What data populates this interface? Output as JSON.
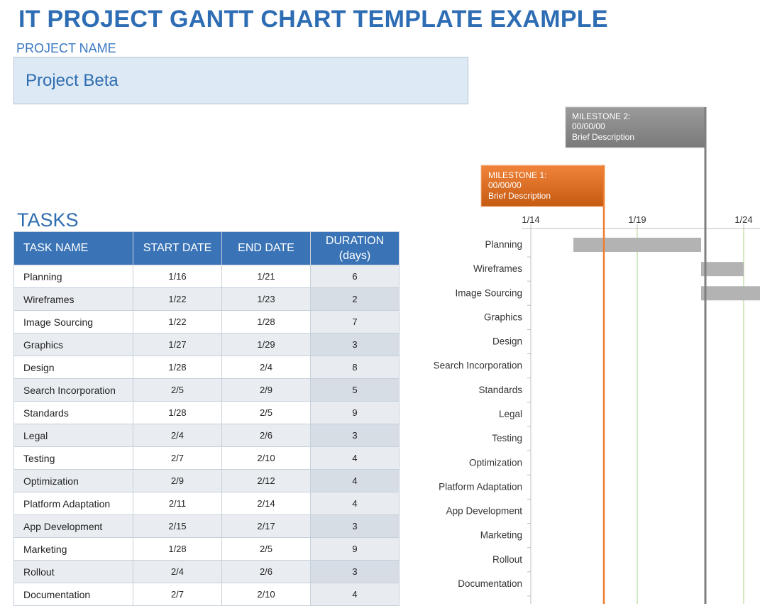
{
  "header": {
    "title": "IT PROJECT GANTT CHART TEMPLATE EXAMPLE",
    "project_label": "PROJECT NAME",
    "project_name": "Project Beta",
    "tasks_label": "TASKS"
  },
  "table": {
    "columns": [
      "TASK NAME",
      "START DATE",
      "END DATE",
      "DURATION (days)"
    ],
    "rows": [
      {
        "task": "Planning",
        "start": "1/16",
        "end": "1/21",
        "duration": 6
      },
      {
        "task": "Wireframes",
        "start": "1/22",
        "end": "1/23",
        "duration": 2
      },
      {
        "task": "Image Sourcing",
        "start": "1/22",
        "end": "1/28",
        "duration": 7
      },
      {
        "task": "Graphics",
        "start": "1/27",
        "end": "1/29",
        "duration": 3
      },
      {
        "task": "Design",
        "start": "1/28",
        "end": "2/4",
        "duration": 8
      },
      {
        "task": "Search Incorporation",
        "start": "2/5",
        "end": "2/9",
        "duration": 5
      },
      {
        "task": "Standards",
        "start": "1/28",
        "end": "2/5",
        "duration": 9
      },
      {
        "task": "Legal",
        "start": "2/4",
        "end": "2/6",
        "duration": 3
      },
      {
        "task": "Testing",
        "start": "2/7",
        "end": "2/10",
        "duration": 4
      },
      {
        "task": "Optimization",
        "start": "2/9",
        "end": "2/12",
        "duration": 4
      },
      {
        "task": "Platform Adaptation",
        "start": "2/11",
        "end": "2/14",
        "duration": 4
      },
      {
        "task": "App Development",
        "start": "2/15",
        "end": "2/17",
        "duration": 3
      },
      {
        "task": "Marketing",
        "start": "1/28",
        "end": "2/5",
        "duration": 9
      },
      {
        "task": "Rollout",
        "start": "2/4",
        "end": "2/6",
        "duration": 3
      },
      {
        "task": "Documentation",
        "start": "2/7",
        "end": "2/10",
        "duration": 4
      }
    ]
  },
  "gantt": {
    "xlim": [
      "1/14",
      "1/24"
    ],
    "xticks": [
      "1/14",
      "1/19",
      "1/24"
    ],
    "bar_color": "#b3b3b3",
    "grid_color": "#a9d08e",
    "milestones": [
      {
        "title": "MILESTONE 1:",
        "date": "00/00/00",
        "description": "Brief Description"
      },
      {
        "title": "MILESTONE 2:",
        "date": "00/00/00",
        "description": "Brief Description"
      }
    ]
  }
}
